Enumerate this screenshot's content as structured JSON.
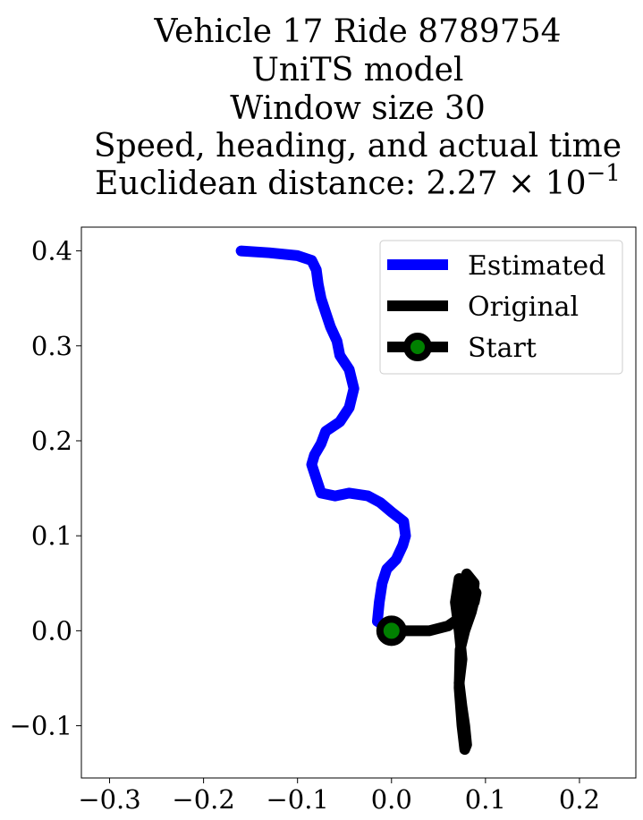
{
  "chart_data": {
    "type": "line",
    "title_lines": [
      "Vehicle 17 Ride 8789754",
      "UniTS model",
      "Window size 30",
      "Speed, heading, and actual time",
      "Euclidean distance: 2.27 × 10"
    ],
    "title_exponent": "−1",
    "xlabel": "",
    "ylabel": "",
    "xlim": [
      -0.33,
      0.26
    ],
    "ylim": [
      -0.155,
      0.425
    ],
    "x_ticks": [
      -0.3,
      -0.2,
      -0.1,
      0.0,
      0.1,
      0.2
    ],
    "x_tick_labels": [
      "−0.3",
      "−0.2",
      "−0.1",
      "0.0",
      "0.1",
      "0.2"
    ],
    "y_ticks": [
      -0.1,
      0.0,
      0.1,
      0.2,
      0.3,
      0.4
    ],
    "y_tick_labels": [
      "−0.1",
      "0.0",
      "0.1",
      "0.2",
      "0.3",
      "0.4"
    ],
    "grid": false,
    "legend_position": "top-right",
    "series": [
      {
        "name": "Estimated",
        "color": "#0000ff",
        "points": [
          [
            0.0,
            0.0
          ],
          [
            -0.015,
            0.01
          ],
          [
            -0.013,
            0.03
          ],
          [
            -0.01,
            0.05
          ],
          [
            -0.005,
            0.065
          ],
          [
            0.005,
            0.075
          ],
          [
            0.012,
            0.09
          ],
          [
            0.015,
            0.1
          ],
          [
            0.013,
            0.115
          ],
          [
            0.0,
            0.125
          ],
          [
            -0.012,
            0.135
          ],
          [
            -0.025,
            0.142
          ],
          [
            -0.045,
            0.145
          ],
          [
            -0.06,
            0.142
          ],
          [
            -0.075,
            0.145
          ],
          [
            -0.08,
            0.16
          ],
          [
            -0.085,
            0.175
          ],
          [
            -0.082,
            0.185
          ],
          [
            -0.075,
            0.197
          ],
          [
            -0.07,
            0.21
          ],
          [
            -0.055,
            0.22
          ],
          [
            -0.045,
            0.235
          ],
          [
            -0.04,
            0.255
          ],
          [
            -0.045,
            0.275
          ],
          [
            -0.055,
            0.29
          ],
          [
            -0.058,
            0.305
          ],
          [
            -0.065,
            0.32
          ],
          [
            -0.07,
            0.335
          ],
          [
            -0.075,
            0.35
          ],
          [
            -0.078,
            0.365
          ],
          [
            -0.08,
            0.38
          ],
          [
            -0.085,
            0.39
          ],
          [
            -0.1,
            0.395
          ],
          [
            -0.13,
            0.398
          ],
          [
            -0.16,
            0.4
          ]
        ]
      },
      {
        "name": "Original",
        "color": "#000000",
        "points": [
          [
            0.0,
            0.0
          ],
          [
            0.04,
            0.0
          ],
          [
            0.06,
            0.005
          ],
          [
            0.075,
            0.015
          ],
          [
            0.088,
            0.03
          ],
          [
            0.09,
            0.04
          ],
          [
            0.085,
            0.02
          ],
          [
            0.078,
            0.0
          ],
          [
            0.073,
            0.02
          ],
          [
            0.078,
            0.045
          ],
          [
            0.072,
            0.055
          ],
          [
            0.068,
            0.03
          ],
          [
            0.072,
            0.0
          ],
          [
            0.075,
            -0.03
          ],
          [
            0.072,
            -0.055
          ],
          [
            0.075,
            -0.08
          ],
          [
            0.078,
            -0.1
          ],
          [
            0.08,
            -0.12
          ],
          [
            0.078,
            -0.125
          ],
          [
            0.075,
            -0.1
          ],
          [
            0.072,
            -0.06
          ],
          [
            0.073,
            -0.02
          ],
          [
            0.078,
            0.0
          ],
          [
            0.085,
            0.02
          ],
          [
            0.088,
            0.05
          ],
          [
            0.08,
            0.06
          ],
          [
            0.075,
            0.03
          ],
          [
            0.07,
            0.01
          ]
        ]
      }
    ],
    "start_point": {
      "name": "Start",
      "x": 0.0,
      "y": 0.0,
      "fill_color": "#008000",
      "edge_color": "#000000"
    }
  }
}
